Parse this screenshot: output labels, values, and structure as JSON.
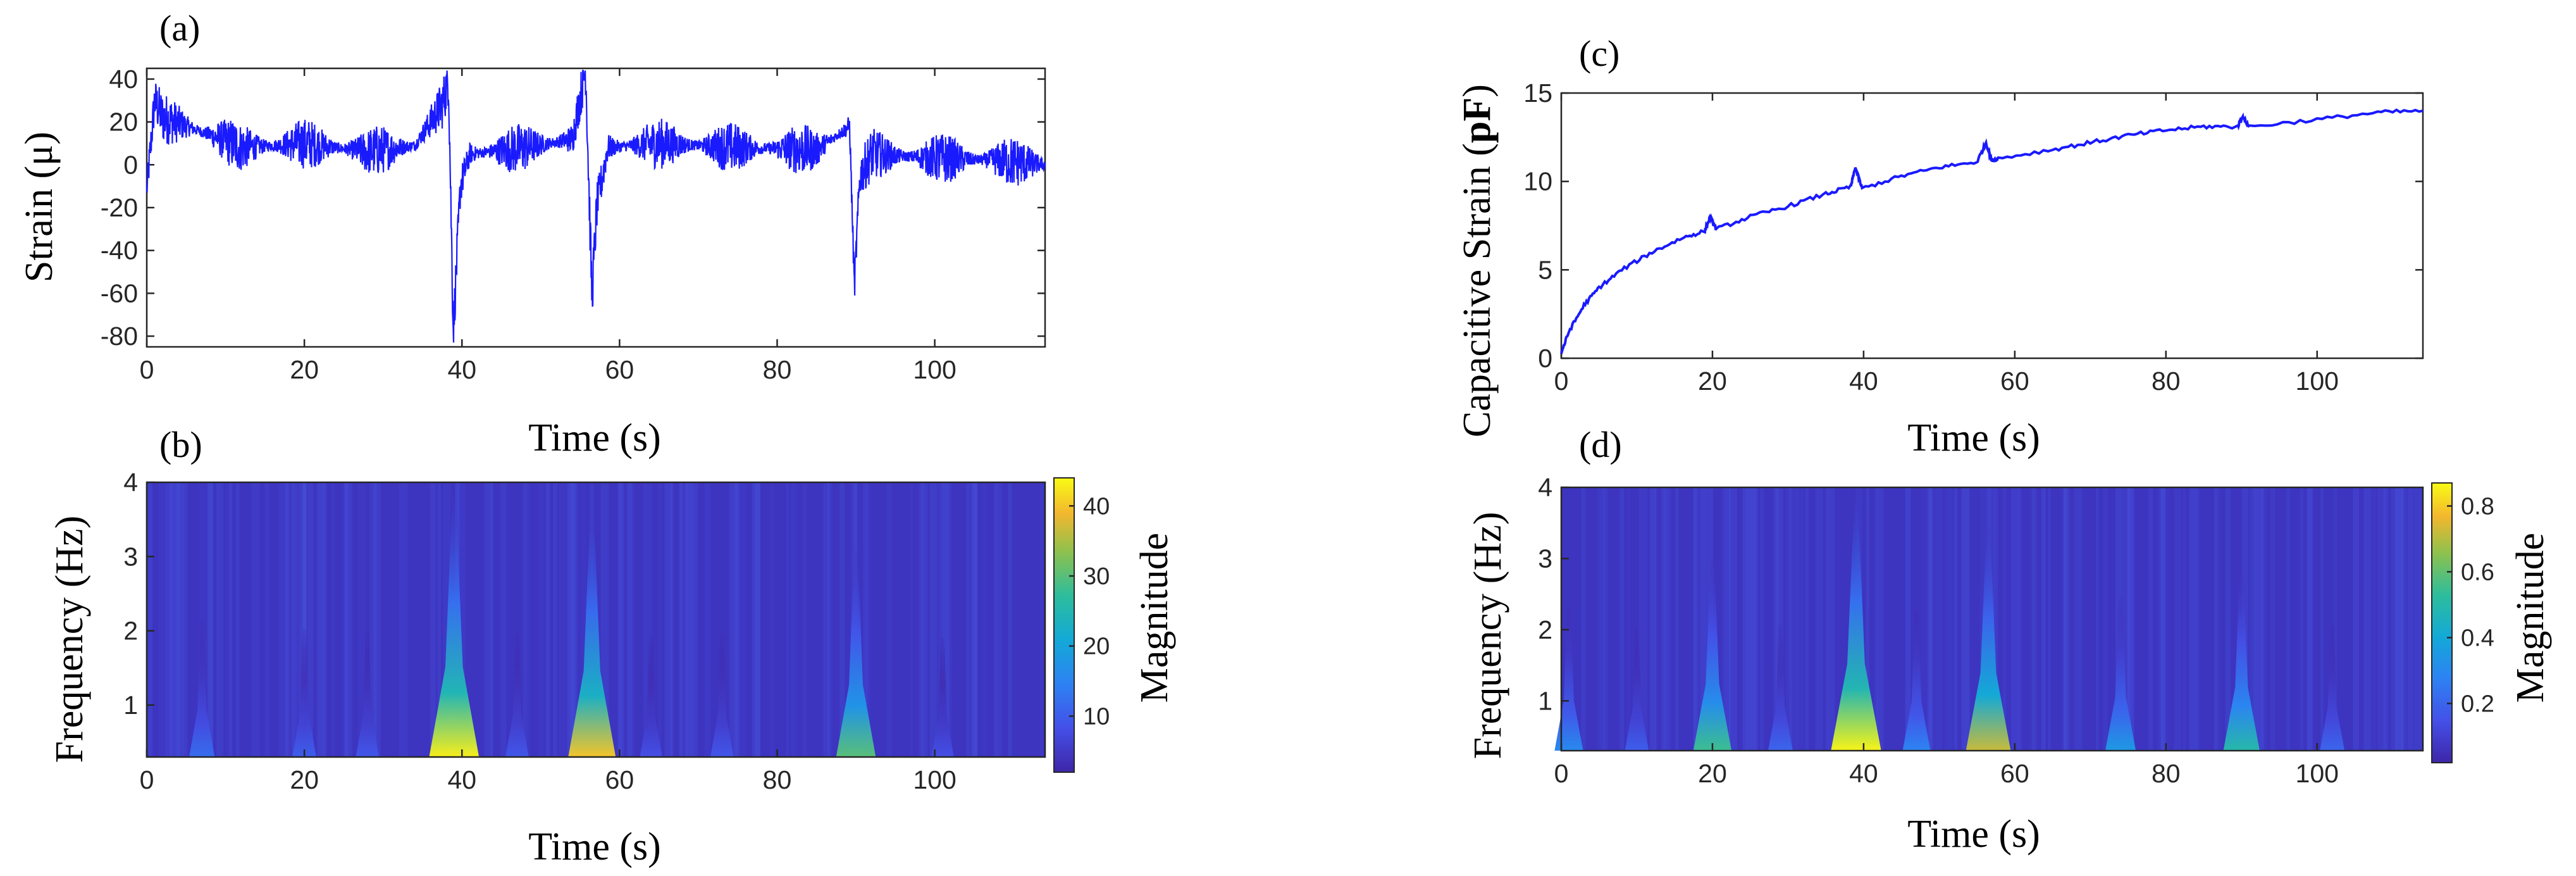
{
  "chart_data": [
    {
      "panel": "(a)",
      "type": "line",
      "xlabel": "Time (s)",
      "ylabel": "Strain (μ)",
      "xlim": [
        0,
        114
      ],
      "ylim": [
        -85,
        45
      ],
      "xticks": [
        0,
        20,
        40,
        60,
        80,
        100
      ],
      "yticks": [
        -80,
        -60,
        -40,
        -20,
        0,
        20,
        40
      ],
      "series_color": "#1a1aff",
      "baseline": 10,
      "noise_amplitude": 12,
      "series": [
        {
          "x": [
            0,
            1,
            2,
            5,
            8,
            12,
            20,
            28,
            34,
            37.5,
            38.3,
            38.9,
            39.8,
            41,
            48,
            54,
            55.7,
            56.5,
            57.1,
            58.5,
            65,
            75,
            85,
            89.2,
            89.8,
            90.5,
            92,
            100,
            108,
            114
          ],
          "y": [
            -12,
            30,
            22,
            18,
            14,
            8,
            10,
            6,
            9,
            28,
            40,
            -78,
            -10,
            5,
            8,
            12,
            45,
            -62,
            -20,
            8,
            10,
            8,
            7,
            18,
            -57,
            -5,
            5,
            3,
            2,
            0
          ]
        }
      ]
    },
    {
      "panel": "(b)",
      "type": "heatmap",
      "xlabel": "Time (s)",
      "ylabel": "Frequency (Hz)",
      "colorbar_label": "Magnitude",
      "xlim": [
        0,
        114
      ],
      "ylim": [
        0.3,
        4
      ],
      "xticks": [
        0,
        20,
        40,
        60,
        80,
        100
      ],
      "yticks": [
        1,
        2,
        3,
        4
      ],
      "colorbar_range": [
        2,
        44
      ],
      "colorbar_ticks": [
        10,
        20,
        30,
        40
      ],
      "hotspots": [
        {
          "t": 39,
          "magnitude": 43
        },
        {
          "t": 56.5,
          "magnitude": 40
        },
        {
          "t": 90,
          "magnitude": 30
        },
        {
          "t": 7,
          "magnitude": 12
        },
        {
          "t": 20,
          "magnitude": 10
        },
        {
          "t": 28,
          "magnitude": 9
        },
        {
          "t": 47,
          "magnitude": 9
        },
        {
          "t": 64,
          "magnitude": 8
        },
        {
          "t": 73,
          "magnitude": 9
        },
        {
          "t": 101,
          "magnitude": 8
        }
      ]
    },
    {
      "panel": "(c)",
      "type": "line",
      "xlabel": "Time (s)",
      "ylabel_prefix": "Capacitive Strain (",
      "ylabel_unit": "pF",
      "ylabel_suffix": ")",
      "xlim": [
        0,
        114
      ],
      "ylim": [
        0,
        15
      ],
      "xticks": [
        0,
        20,
        40,
        60,
        80,
        100
      ],
      "yticks": [
        0,
        5,
        10,
        15
      ],
      "series_color": "#1a1aff",
      "series": [
        {
          "x": [
            0,
            1,
            3,
            5,
            8,
            12,
            16,
            19,
            19.7,
            20.5,
            25,
            30,
            35,
            38.3,
            38.9,
            39.8,
            45,
            50,
            55,
            56.2,
            56.9,
            57.8,
            65,
            70,
            75,
            80,
            85,
            89.5,
            90.1,
            91,
            100,
            108,
            114
          ],
          "y": [
            0.3,
            1.5,
            3.0,
            4.0,
            5.0,
            6.0,
            6.8,
            7.2,
            8.0,
            7.3,
            8.0,
            8.6,
            9.3,
            9.7,
            10.8,
            9.6,
            10.3,
            10.8,
            11.1,
            12.2,
            11.2,
            11.3,
            11.8,
            12.2,
            12.6,
            12.9,
            13.1,
            13.1,
            13.7,
            13.1,
            13.5,
            13.9,
            14.0
          ]
        }
      ]
    },
    {
      "panel": "(d)",
      "type": "heatmap",
      "xlabel": "Time (s)",
      "ylabel": "Frequency (Hz)",
      "colorbar_label": "Magnitude",
      "xlim": [
        0,
        114
      ],
      "ylim": [
        0.3,
        4
      ],
      "xticks": [
        0,
        20,
        40,
        60,
        80,
        100
      ],
      "yticks": [
        1,
        2,
        3,
        4
      ],
      "colorbar_range": [
        0.02,
        0.87
      ],
      "colorbar_ticks": [
        0.2,
        0.4,
        0.6,
        0.8
      ],
      "hotspots": [
        {
          "t": 39,
          "magnitude": 0.86
        },
        {
          "t": 56.5,
          "magnitude": 0.72
        },
        {
          "t": 20,
          "magnitude": 0.55
        },
        {
          "t": 90,
          "magnitude": 0.5
        },
        {
          "t": 74,
          "magnitude": 0.35
        },
        {
          "t": 47,
          "magnitude": 0.28
        },
        {
          "t": 29,
          "magnitude": 0.2
        },
        {
          "t": 10,
          "magnitude": 0.18
        },
        {
          "t": 1,
          "magnitude": 0.3
        },
        {
          "t": 102,
          "magnitude": 0.2
        }
      ]
    }
  ]
}
